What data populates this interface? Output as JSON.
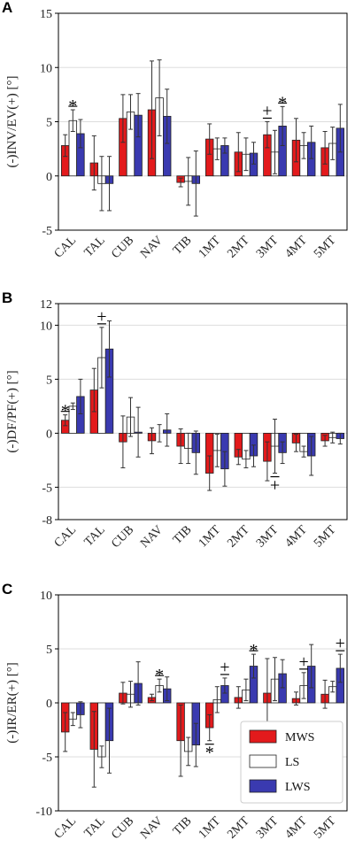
{
  "colors": {
    "MWS": "#e31a1c",
    "LS": "#ffffff",
    "LWS": "#3a3ab0",
    "grid": "#dddddd",
    "errorbar": "#333333"
  },
  "legend": {
    "placement": "bottom-right of panel C",
    "items": [
      "MWS",
      "LS",
      "LWS"
    ]
  },
  "chart_data": [
    {
      "type": "bar",
      "panel": "A",
      "ylabel": "(-)INV/EV(+) [°]",
      "ylim": [
        -5,
        15
      ],
      "yticks": [
        -5,
        0,
        5,
        10,
        15
      ],
      "grid": true,
      "categories": [
        "CAL",
        "TAL",
        "CUB",
        "NAV",
        "TIB",
        "1MT",
        "2MT",
        "3MT",
        "4MT",
        "5MT"
      ],
      "series": [
        {
          "name": "MWS",
          "values": [
            2.8,
            1.2,
            5.3,
            6.1,
            -0.6,
            3.4,
            2.2,
            3.8,
            3.3,
            2.6
          ],
          "errors": [
            1.0,
            2.5,
            2.2,
            4.5,
            0.4,
            1.4,
            1.8,
            1.2,
            2.0,
            1.5
          ]
        },
        {
          "name": "LS",
          "values": [
            5.1,
            -0.7,
            5.9,
            7.2,
            -0.5,
            2.5,
            2.0,
            2.2,
            2.8,
            3.0
          ],
          "errors": [
            1.0,
            2.5,
            1.6,
            3.5,
            2.2,
            1.0,
            1.5,
            2.0,
            1.2,
            1.5
          ]
        },
        {
          "name": "LWS",
          "values": [
            3.9,
            -0.7,
            5.6,
            5.5,
            -0.7,
            2.8,
            2.1,
            4.6,
            3.1,
            4.4
          ],
          "errors": [
            1.3,
            2.5,
            2.0,
            2.5,
            3.0,
            0.7,
            1.0,
            1.8,
            1.5,
            2.2
          ]
        }
      ],
      "annotations": [
        {
          "category": "CAL",
          "symbol": "*"
        },
        {
          "category": "3MT",
          "symbol": "+"
        },
        {
          "category": "3MT",
          "symbol": "*"
        }
      ]
    },
    {
      "type": "bar",
      "panel": "B",
      "ylabel": "(-)DF/PF(+) [°]",
      "ylim": [
        -8,
        12
      ],
      "yticks": [
        -8,
        -5,
        0,
        5,
        10,
        12
      ],
      "grid": true,
      "categories": [
        "CAL",
        "TAL",
        "CUB",
        "NAV",
        "TIB",
        "1MT",
        "2MT",
        "3MT",
        "4MT",
        "5MT"
      ],
      "series": [
        {
          "name": "MWS",
          "values": [
            1.2,
            4.0,
            -0.8,
            -0.7,
            -1.2,
            -3.7,
            -2.2,
            -2.6,
            -0.9,
            -0.7
          ],
          "errors": [
            0.5,
            2.0,
            2.4,
            1.2,
            1.6,
            1.6,
            0.7,
            1.8,
            0.8,
            0.5
          ]
        },
        {
          "name": "LS",
          "values": [
            2.5,
            7.0,
            1.5,
            0.0,
            -1.4,
            -1.6,
            -2.4,
            -1.2,
            -1.7,
            -0.4
          ],
          "errors": [
            0.3,
            2.8,
            1.8,
            0.8,
            1.4,
            1.5,
            0.8,
            2.5,
            0.5,
            0.5
          ]
        },
        {
          "name": "LWS",
          "values": [
            3.4,
            7.8,
            0.1,
            0.3,
            -1.8,
            -3.3,
            -2.1,
            -1.8,
            -2.1,
            -0.5
          ],
          "errors": [
            1.6,
            2.6,
            2.3,
            1.5,
            2.0,
            1.6,
            1.0,
            1.0,
            1.8,
            0.5
          ]
        }
      ],
      "annotations": [
        {
          "category": "CAL",
          "symbol": "*"
        },
        {
          "category": "TAL",
          "symbol": "+"
        },
        {
          "category": "3MT",
          "symbol": "+"
        }
      ]
    },
    {
      "type": "bar",
      "panel": "C",
      "ylabel": "(-)IR/ER(+) [°]",
      "ylim": [
        -10,
        10
      ],
      "yticks": [
        -10,
        -5,
        0,
        5,
        10
      ],
      "grid": true,
      "categories": [
        "CAL",
        "TAL",
        "CUB",
        "NAV",
        "TIB",
        "1MT",
        "2MT",
        "3MT",
        "4MT",
        "5MT"
      ],
      "series": [
        {
          "name": "MWS",
          "values": [
            -2.7,
            -4.3,
            0.9,
            0.5,
            -3.5,
            -2.3,
            0.5,
            0.9,
            0.4,
            0.8
          ],
          "errors": [
            1.8,
            3.5,
            1.0,
            0.3,
            3.3,
            1.2,
            1.0,
            3.2,
            0.6,
            1.3
          ]
        },
        {
          "name": "LS",
          "values": [
            -1.5,
            -5.0,
            0.8,
            1.6,
            -4.5,
            0.3,
            1.2,
            2.2,
            1.6,
            1.5
          ],
          "errors": [
            0.6,
            1.0,
            1.2,
            0.6,
            1.3,
            1.2,
            1.0,
            2.0,
            1.2,
            0.5
          ]
        },
        {
          "name": "LWS",
          "values": [
            -1.1,
            -3.5,
            1.8,
            1.3,
            -3.9,
            1.6,
            3.4,
            2.7,
            3.4,
            3.2
          ],
          "errors": [
            1.2,
            3.0,
            2.0,
            1.1,
            2.0,
            0.7,
            1.1,
            1.3,
            2.0,
            1.3
          ]
        }
      ],
      "annotations": [
        {
          "category": "NAV",
          "symbol": "*"
        },
        {
          "category": "1MT",
          "symbol": "+"
        },
        {
          "category": "1MT",
          "symbol": "*"
        },
        {
          "category": "2MT",
          "symbol": "*"
        },
        {
          "category": "4MT",
          "symbol": "+"
        },
        {
          "category": "5MT",
          "symbol": "+"
        }
      ]
    }
  ]
}
